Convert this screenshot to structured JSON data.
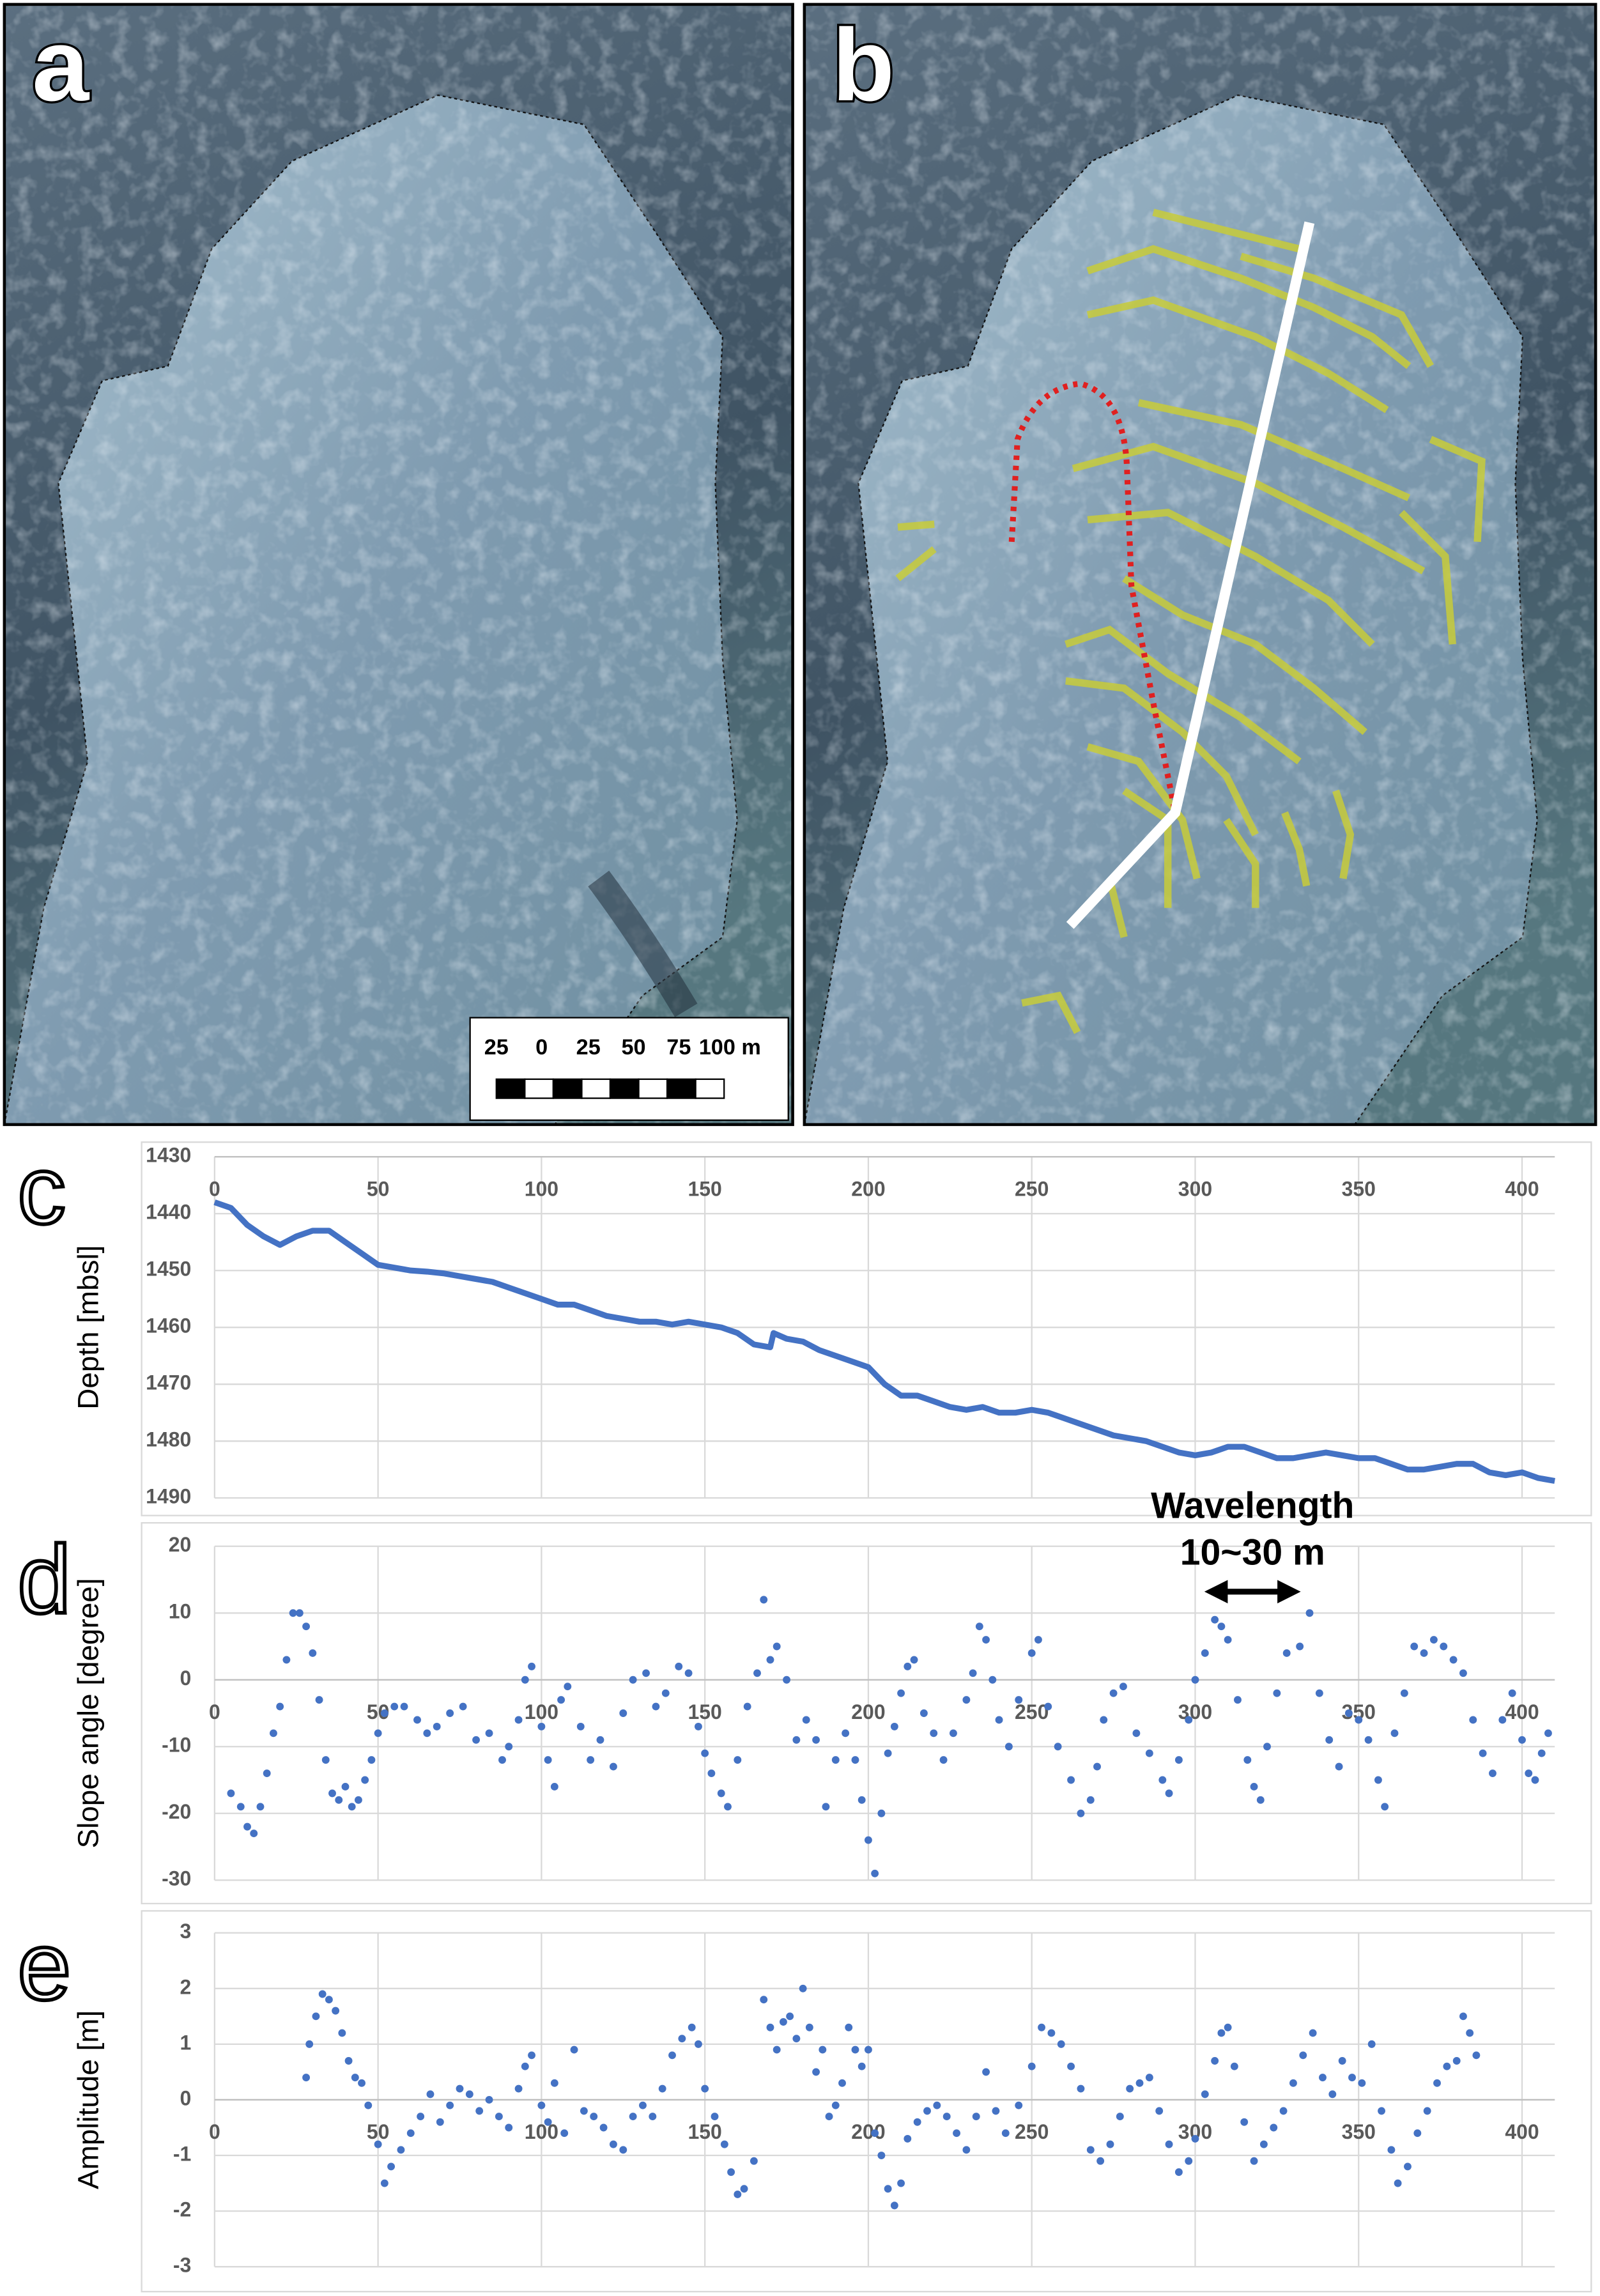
{
  "panels": [
    {
      "label": "a",
      "scale_labels": [
        "25",
        "0",
        "25",
        "50",
        "75",
        "100 m"
      ]
    },
    {
      "label": "b"
    }
  ],
  "chart_data": [
    {
      "type": "line",
      "panel_label": "c",
      "y_label": "Depth [mbsl]",
      "color": "#4472c4",
      "y_inverted": true,
      "grid": true,
      "xlim": [
        0,
        410
      ],
      "xticks": [
        0,
        50,
        100,
        150,
        200,
        250,
        300,
        350,
        400
      ],
      "ylim": [
        1430,
        1490
      ],
      "yticks": [
        1430,
        1440,
        1450,
        1460,
        1470,
        1480,
        1490
      ],
      "x": [
        0,
        5,
        10,
        15,
        20,
        25,
        30,
        35,
        40,
        45,
        50,
        55,
        60,
        65,
        70,
        75,
        80,
        85,
        90,
        95,
        100,
        105,
        110,
        115,
        120,
        125,
        130,
        135,
        140,
        145,
        150,
        155,
        160,
        165,
        170,
        171,
        175,
        180,
        185,
        190,
        195,
        200,
        205,
        210,
        215,
        220,
        225,
        230,
        235,
        240,
        245,
        250,
        255,
        260,
        265,
        270,
        275,
        280,
        285,
        290,
        295,
        300,
        305,
        310,
        315,
        320,
        325,
        330,
        335,
        340,
        345,
        350,
        355,
        360,
        365,
        370,
        375,
        380,
        385,
        390,
        395,
        400,
        405,
        410
      ],
      "values": [
        1438,
        1439,
        1442,
        1444,
        1445.5,
        1444,
        1443,
        1443,
        1445,
        1447,
        1449,
        1449.5,
        1450,
        1450.2,
        1450.5,
        1451,
        1451.5,
        1452,
        1453,
        1454,
        1455,
        1456,
        1456,
        1457,
        1458,
        1458.5,
        1459,
        1459,
        1459.5,
        1459,
        1459.5,
        1460,
        1461,
        1463,
        1463.5,
        1461,
        1462,
        1462.5,
        1464,
        1465,
        1466,
        1467,
        1470,
        1472,
        1472,
        1473,
        1474,
        1474.5,
        1474,
        1475,
        1475,
        1474.5,
        1475,
        1476,
        1477,
        1478,
        1479,
        1479.5,
        1480,
        1481,
        1482,
        1482.5,
        1482,
        1481,
        1481,
        1482,
        1483,
        1483,
        1482.5,
        1482,
        1482.5,
        1483,
        1483,
        1484,
        1485,
        1485,
        1484.5,
        1484,
        1484,
        1485.5,
        1486,
        1485.5,
        1486.5,
        1487
      ]
    },
    {
      "type": "scatter",
      "panel_label": "d",
      "y_label": "Slope angle [degree]",
      "color": "#4472c4",
      "grid": true,
      "annotation": [
        "Wavelength",
        "10~30 m"
      ],
      "xlim": [
        0,
        410
      ],
      "xticks": [
        0,
        50,
        100,
        150,
        200,
        250,
        300,
        350,
        400
      ],
      "ylim": [
        -30,
        20
      ],
      "yticks": [
        -30,
        -20,
        -10,
        0,
        10,
        20
      ],
      "x": [
        5,
        8,
        10,
        12,
        14,
        16,
        18,
        20,
        22,
        24,
        26,
        28,
        30,
        32,
        34,
        36,
        38,
        40,
        42,
        44,
        46,
        48,
        50,
        52,
        55,
        58,
        62,
        65,
        68,
        72,
        76,
        80,
        84,
        88,
        90,
        93,
        95,
        97,
        100,
        102,
        104,
        106,
        108,
        112,
        115,
        118,
        122,
        125,
        128,
        132,
        135,
        138,
        142,
        145,
        148,
        150,
        152,
        155,
        157,
        160,
        163,
        166,
        168,
        170,
        172,
        175,
        178,
        181,
        184,
        187,
        190,
        193,
        196,
        198,
        200,
        202,
        204,
        206,
        208,
        210,
        212,
        214,
        217,
        220,
        223,
        226,
        230,
        232,
        234,
        236,
        238,
        240,
        243,
        246,
        250,
        252,
        255,
        258,
        262,
        265,
        268,
        270,
        272,
        275,
        278,
        282,
        286,
        290,
        292,
        295,
        298,
        300,
        303,
        306,
        308,
        310,
        313,
        316,
        318,
        320,
        322,
        325,
        328,
        332,
        335,
        338,
        341,
        344,
        347,
        350,
        353,
        356,
        358,
        361,
        364,
        367,
        370,
        373,
        376,
        379,
        382,
        385,
        388,
        391,
        394,
        397,
        400,
        402,
        404,
        406,
        408
      ],
      "values": [
        -17,
        -19,
        -22,
        -23,
        -19,
        -14,
        -8,
        -4,
        3,
        10,
        10,
        8,
        4,
        -3,
        -12,
        -17,
        -18,
        -16,
        -19,
        -18,
        -15,
        -12,
        -8,
        -5,
        -4,
        -4,
        -6,
        -8,
        -7,
        -5,
        -4,
        -9,
        -8,
        -12,
        -10,
        -6,
        0,
        2,
        -7,
        -12,
        -16,
        -3,
        -1,
        -7,
        -12,
        -9,
        -13,
        -5,
        0,
        1,
        -4,
        -2,
        2,
        1,
        -7,
        -11,
        -14,
        -17,
        -19,
        -12,
        -4,
        1,
        12,
        3,
        5,
        0,
        -9,
        -6,
        -9,
        -19,
        -12,
        -8,
        -12,
        -18,
        -24,
        -29,
        -20,
        -11,
        -7,
        -2,
        2,
        3,
        -5,
        -8,
        -12,
        -8,
        -3,
        1,
        8,
        6,
        0,
        -6,
        -10,
        -3,
        4,
        6,
        -4,
        -10,
        -15,
        -20,
        -18,
        -13,
        -6,
        -2,
        -1,
        -8,
        -11,
        -15,
        -17,
        -12,
        -6,
        0,
        4,
        9,
        8,
        6,
        -3,
        -12,
        -16,
        -18,
        -10,
        -2,
        4,
        5,
        10,
        -2,
        -9,
        -13,
        -5,
        -6,
        -9,
        -15,
        -19,
        -8,
        -2,
        5,
        4,
        6,
        5,
        3,
        1,
        -6,
        -11,
        -14,
        -6,
        -2,
        -9,
        -14,
        -15,
        -11,
        -8
      ]
    },
    {
      "type": "scatter",
      "panel_label": "e",
      "y_label": "Amplitude [m]",
      "color": "#4472c4",
      "grid": true,
      "xlim": [
        0,
        410
      ],
      "xticks": [
        0,
        50,
        100,
        150,
        200,
        250,
        300,
        350,
        400
      ],
      "ylim": [
        -3,
        3
      ],
      "yticks": [
        -3,
        -2,
        -1,
        0,
        1,
        2,
        3
      ],
      "x": [
        28,
        29,
        31,
        33,
        35,
        37,
        39,
        41,
        43,
        45,
        47,
        50,
        52,
        54,
        57,
        60,
        63,
        66,
        69,
        72,
        75,
        78,
        81,
        84,
        87,
        90,
        93,
        95,
        97,
        100,
        102,
        104,
        107,
        110,
        113,
        116,
        119,
        122,
        125,
        128,
        131,
        134,
        137,
        140,
        143,
        146,
        148,
        150,
        153,
        156,
        158,
        160,
        162,
        165,
        168,
        170,
        172,
        174,
        176,
        178,
        180,
        182,
        184,
        186,
        188,
        190,
        192,
        194,
        196,
        198,
        200,
        202,
        204,
        206,
        208,
        210,
        212,
        215,
        218,
        221,
        224,
        227,
        230,
        233,
        236,
        239,
        242,
        246,
        250,
        253,
        256,
        259,
        262,
        265,
        268,
        271,
        274,
        277,
        280,
        283,
        286,
        289,
        292,
        295,
        298,
        300,
        303,
        306,
        308,
        310,
        312,
        315,
        318,
        321,
        324,
        327,
        330,
        333,
        336,
        339,
        342,
        345,
        348,
        351,
        354,
        357,
        360,
        362,
        365,
        368,
        371,
        374,
        377,
        380,
        382,
        384,
        386
      ],
      "values": [
        0.4,
        1.0,
        1.5,
        1.9,
        1.8,
        1.6,
        1.2,
        0.7,
        0.4,
        0.3,
        -0.1,
        -0.8,
        -1.5,
        -1.2,
        -0.9,
        -0.6,
        -0.3,
        0.1,
        -0.4,
        -0.1,
        0.2,
        0.1,
        -0.2,
        0.0,
        -0.3,
        -0.5,
        0.2,
        0.6,
        0.8,
        -0.1,
        -0.4,
        0.3,
        -0.6,
        0.9,
        -0.2,
        -0.3,
        -0.5,
        -0.8,
        -0.9,
        -0.3,
        -0.1,
        -0.3,
        0.2,
        0.8,
        1.1,
        1.3,
        1.0,
        0.2,
        -0.3,
        -0.8,
        -1.3,
        -1.7,
        -1.6,
        -1.1,
        1.8,
        1.3,
        0.9,
        1.4,
        1.5,
        1.1,
        2.0,
        1.3,
        0.5,
        0.9,
        -0.3,
        -0.1,
        0.3,
        1.3,
        0.9,
        0.6,
        0.9,
        -0.6,
        -1.0,
        -1.6,
        -1.9,
        -1.5,
        -0.7,
        -0.4,
        -0.2,
        -0.1,
        -0.3,
        -0.6,
        -0.9,
        -0.3,
        0.5,
        -0.2,
        -0.6,
        -0.1,
        0.6,
        1.3,
        1.2,
        1.0,
        0.6,
        0.2,
        -0.9,
        -1.1,
        -0.8,
        -0.3,
        0.2,
        0.3,
        0.4,
        -0.2,
        -0.8,
        -1.3,
        -1.1,
        -0.7,
        0.1,
        0.7,
        1.2,
        1.3,
        0.6,
        -0.4,
        -1.1,
        -0.8,
        -0.5,
        -0.2,
        0.3,
        0.8,
        1.2,
        0.4,
        0.1,
        0.7,
        0.4,
        0.3,
        1.0,
        -0.2,
        -0.9,
        -1.5,
        -1.2,
        -0.6,
        -0.2,
        0.3,
        0.6,
        0.7,
        1.5,
        1.2,
        0.8
      ]
    }
  ]
}
